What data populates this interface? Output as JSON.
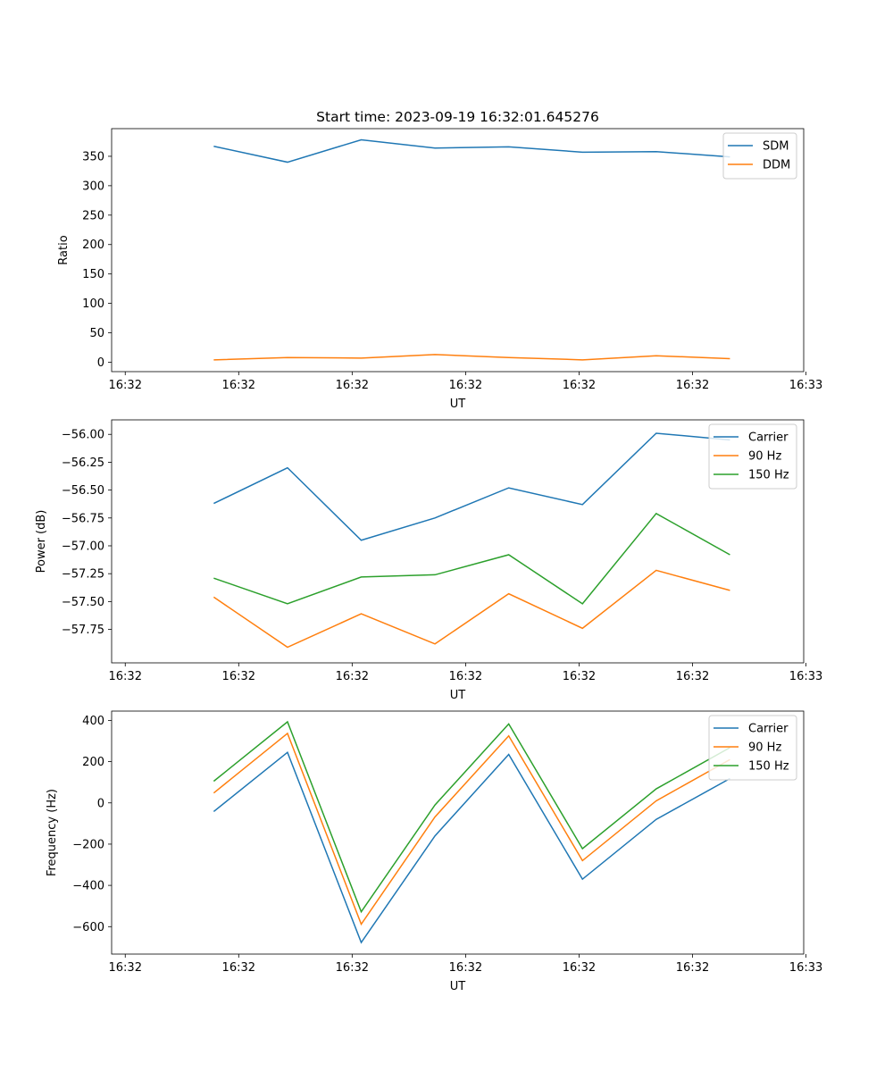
{
  "chart_data": [
    {
      "type": "line",
      "title": "Start time: 2023-09-19 16:32:01.645276",
      "xlabel": "UT",
      "ylabel": "Ratio",
      "x": [
        0.9,
        1.55,
        2.2,
        2.85,
        3.5,
        4.15,
        4.8,
        5.45
      ],
      "xlim": [
        0,
        6.1
      ],
      "x_ticks": [
        0.12,
        1.12,
        2.12,
        3.12,
        4.12,
        5.12,
        6.12
      ],
      "x_tick_labels": [
        "16:32",
        "16:32",
        "16:32",
        "16:32",
        "16:32",
        "16:32",
        "16:33"
      ],
      "ylim": [
        -16,
        397
      ],
      "y_ticks": [
        0,
        50,
        100,
        150,
        200,
        250,
        300,
        350
      ],
      "y_tick_labels": [
        "0",
        "50",
        "100",
        "150",
        "200",
        "250",
        "300",
        "350"
      ],
      "legend_position": "top-right",
      "series": [
        {
          "name": "SDM",
          "color": "#1f77b4",
          "values": [
            367,
            340,
            378,
            364,
            366,
            357,
            358,
            349
          ]
        },
        {
          "name": "DDM",
          "color": "#ff7f0e",
          "values": [
            4,
            8,
            7,
            13,
            8,
            4,
            11,
            6
          ]
        }
      ]
    },
    {
      "type": "line",
      "title": "",
      "xlabel": "UT",
      "ylabel": "Power (dB)",
      "x": [
        0.9,
        1.55,
        2.2,
        2.85,
        3.5,
        4.15,
        4.8,
        5.45
      ],
      "xlim": [
        0,
        6.1
      ],
      "x_ticks": [
        0.12,
        1.12,
        2.12,
        3.12,
        4.12,
        5.12,
        6.12
      ],
      "x_tick_labels": [
        "16:32",
        "16:32",
        "16:32",
        "16:32",
        "16:32",
        "16:32",
        "16:33"
      ],
      "ylim": [
        -58.05,
        -55.87
      ],
      "y_ticks": [
        -57.75,
        -57.5,
        -57.25,
        -57.0,
        -56.75,
        -56.5,
        -56.25,
        -56.0
      ],
      "y_tick_labels": [
        "−57.75",
        "−57.50",
        "−57.25",
        "−57.00",
        "−56.75",
        "−56.50",
        "−56.25",
        "−56.00"
      ],
      "legend_position": "top-right",
      "series": [
        {
          "name": "Carrier",
          "color": "#1f77b4",
          "values": [
            -56.62,
            -56.3,
            -56.95,
            -56.75,
            -56.48,
            -56.63,
            -55.99,
            -56.05
          ]
        },
        {
          "name": "90 Hz",
          "color": "#ff7f0e",
          "values": [
            -57.46,
            -57.91,
            -57.61,
            -57.88,
            -57.43,
            -57.74,
            -57.22,
            -57.4
          ]
        },
        {
          "name": "150 Hz",
          "color": "#2ca02c",
          "values": [
            -57.29,
            -57.52,
            -57.28,
            -57.26,
            -57.08,
            -57.52,
            -56.71,
            -57.08
          ]
        }
      ]
    },
    {
      "type": "line",
      "title": "",
      "xlabel": "UT",
      "ylabel": "Frequency (Hz)",
      "x": [
        0.9,
        1.55,
        2.2,
        2.85,
        3.5,
        4.15,
        4.8,
        5.45
      ],
      "xlim": [
        0,
        6.1
      ],
      "x_ticks": [
        0.12,
        1.12,
        2.12,
        3.12,
        4.12,
        5.12,
        6.12
      ],
      "x_tick_labels": [
        "16:32",
        "16:32",
        "16:32",
        "16:32",
        "16:32",
        "16:32",
        "16:33"
      ],
      "ylim": [
        -733,
        445
      ],
      "y_ticks": [
        -600,
        -400,
        -200,
        0,
        200,
        400
      ],
      "y_tick_labels": [
        "−600",
        "−400",
        "−200",
        "0",
        "200",
        "400"
      ],
      "legend_position": "top-right",
      "series": [
        {
          "name": "Carrier",
          "color": "#1f77b4",
          "values": [
            -42,
            245,
            -677,
            -160,
            235,
            -370,
            -80,
            118
          ]
        },
        {
          "name": "90 Hz",
          "color": "#ff7f0e",
          "values": [
            48,
            337,
            -588,
            -68,
            325,
            -280,
            10,
            210
          ]
        },
        {
          "name": "150 Hz",
          "color": "#2ca02c",
          "values": [
            105,
            393,
            -528,
            -10,
            383,
            -222,
            68,
            268
          ]
        }
      ]
    }
  ]
}
